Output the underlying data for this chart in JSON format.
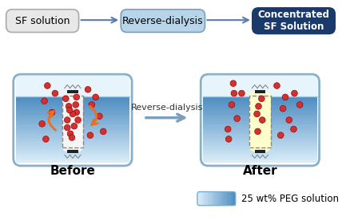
{
  "bg_color": "#f0f0f0",
  "box1_text": "SF solution",
  "box2_text": "Reverse-dialysis",
  "box3_text": "Concentrated\nSF Solution",
  "box1_color": "#e8e8e8",
  "box2_color": "#b8d4e8",
  "box3_color": "#1a3a6b",
  "box3_text_color": "#ffffff",
  "arrow_color": "#5a7ab0",
  "middle_arrow_text": "Reverse-dialysis",
  "before_label": "Before",
  "after_label": "After",
  "legend_text": "25 wt% PEG solution",
  "tank_fill_color_light": "#c8dff0",
  "tank_fill_color_dark": "#5a9fc8",
  "membrane_color_before": "#f5f5f5",
  "membrane_color_after": "#fffff0",
  "dots_color": "#cc3333",
  "arrow_orange": "#e87020"
}
